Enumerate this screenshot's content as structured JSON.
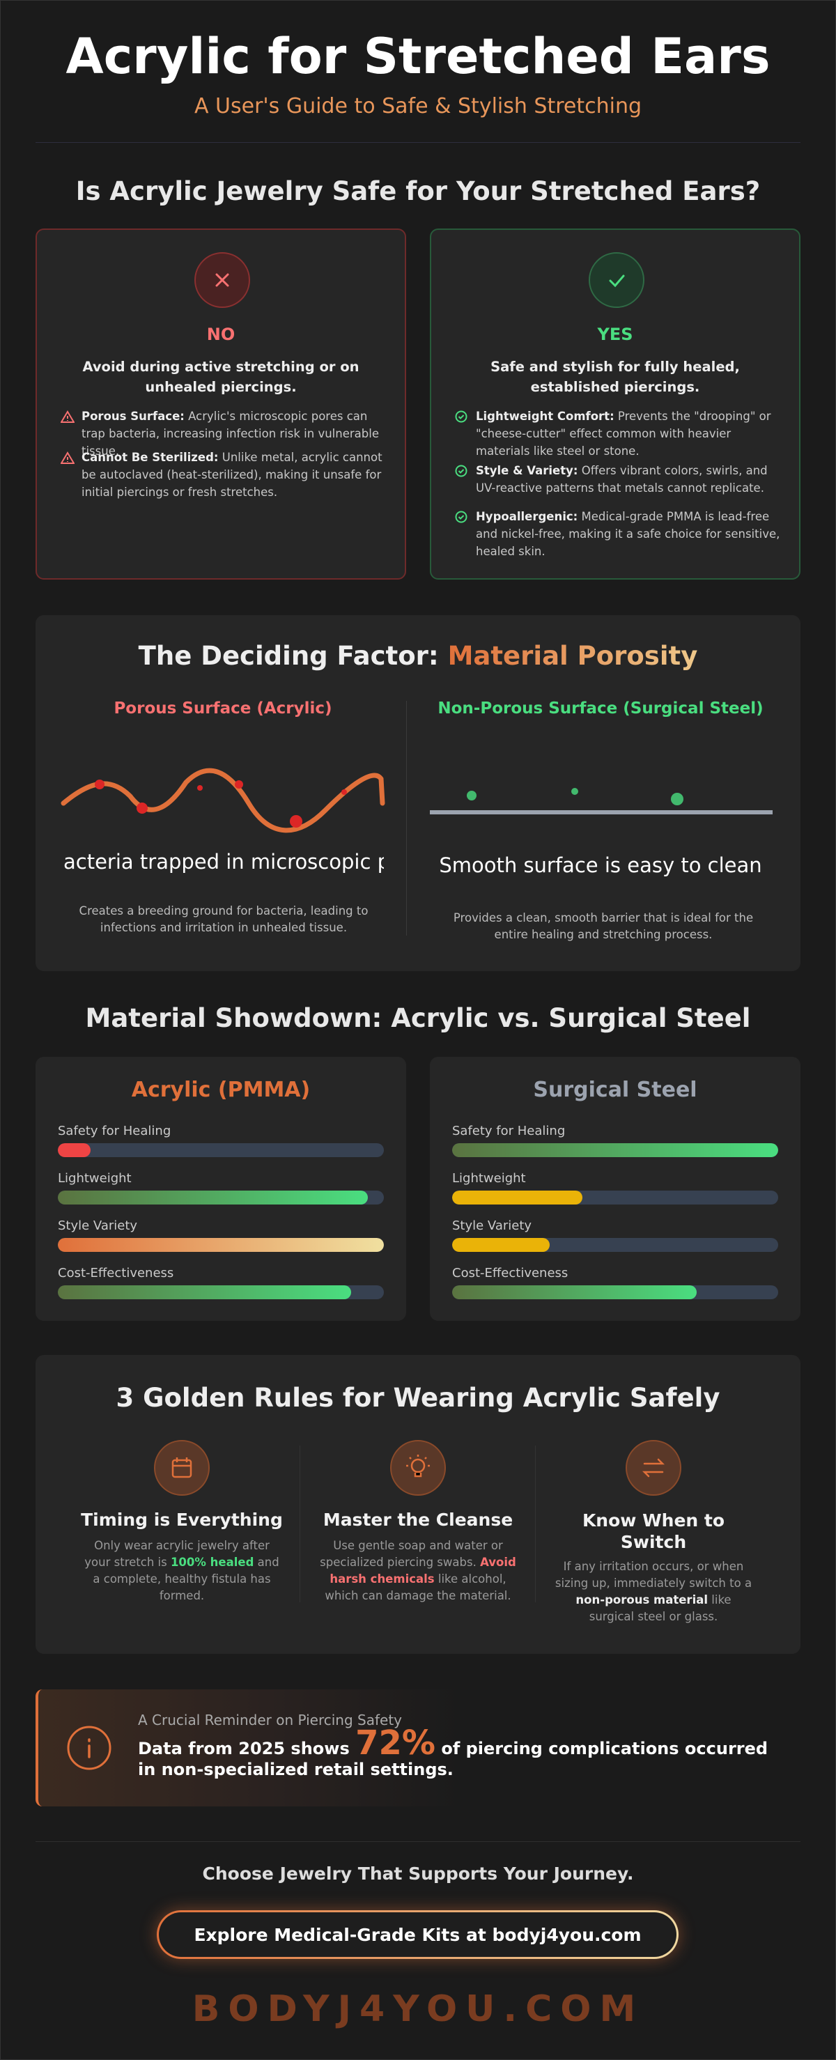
{
  "header": {
    "title": "Acrylic for Stretched Ears",
    "subtitle": "A User's Guide to Safe & Stylish Stretching"
  },
  "safety": {
    "heading": "Is Acrylic Jewelry Safe for Your Stretched Ears?",
    "cards": [
      {
        "verdict": "NO",
        "summary": "Avoid during active stretching or on unhealed piercings.",
        "items": [
          {
            "label": "Porous Surface:",
            "text": "Acrylic's microscopic pores can trap bacteria, increasing infection risk in vulnerable tissue."
          },
          {
            "label": "Cannot Be Sterilized:",
            "text": "Unlike metal, acrylic cannot be autoclaved (heat-sterilized), making it unsafe for initial piercings or fresh stretches."
          }
        ]
      },
      {
        "verdict": "YES",
        "summary": "Safe and stylish for fully healed, established piercings.",
        "items": [
          {
            "label": "Lightweight Comfort:",
            "text": "Prevents the \"drooping\" or \"cheese-cutter\" effect common with heavier materials like steel or stone."
          },
          {
            "label": "Style & Variety:",
            "text": "Offers vibrant colors, swirls, and UV-reactive patterns that metals cannot replicate."
          },
          {
            "label": "Hypoallergenic:",
            "text": "Medical-grade PMMA is lead-free and nickel-free, making it a safe choice for sensitive, healed skin."
          }
        ]
      }
    ]
  },
  "porosity": {
    "heading": "The Deciding Factor:",
    "heading_highlight": "Material Porosity",
    "columns": [
      {
        "title": "Porous Surface (Acrylic)",
        "caption": "acteria trapped in microscopic pit",
        "description": "Creates a breeding ground for bacteria, leading to infections and irritation in unhealed tissue."
      },
      {
        "title": "Non-Porous Surface (Surgical Steel)",
        "caption": "Smooth surface is easy to clean",
        "description": "Provides a clean, smooth barrier that is ideal for the entire healing and stretching process."
      }
    ]
  },
  "showdown": {
    "heading": "Material Showdown: Acrylic vs. Surgical Steel",
    "cards": [
      {
        "title": "Acrylic (PMMA)",
        "ratings": [
          {
            "label": "Safety for Healing",
            "value": 10
          },
          {
            "label": "Lightweight",
            "value": 95
          },
          {
            "label": "Style Variety",
            "value": 100
          },
          {
            "label": "Cost-Effectiveness",
            "value": 90
          }
        ]
      },
      {
        "title": "Surgical Steel",
        "ratings": [
          {
            "label": "Safety for Healing",
            "value": 100
          },
          {
            "label": "Lightweight",
            "value": 40
          },
          {
            "label": "Style Variety",
            "value": 30
          },
          {
            "label": "Cost-Effectiveness",
            "value": 75
          }
        ]
      }
    ]
  },
  "rules": {
    "heading": "3 Golden Rules for Wearing Acrylic Safely",
    "items": [
      {
        "title": "Timing is Everything",
        "body": [
          "Only wear acrylic jewelry after your stretch is ",
          "100% healed",
          " and a complete, healthy fistula has formed."
        ]
      },
      {
        "title": "Master the Cleanse",
        "body": [
          "Use gentle soap and water or specialized piercing swabs. ",
          "Avoid harsh chemicals",
          " like alcohol, which can damage the material."
        ]
      },
      {
        "title": "Know When to Switch",
        "body": [
          "If any irritation occurs, or when sizing up, immediately switch to a ",
          "non-porous material",
          " like surgical steel or glass."
        ]
      }
    ]
  },
  "reminder": {
    "kicker": "A Crucial Reminder on Piercing Safety",
    "text": [
      "Data from 2025 shows ",
      "72%",
      " of piercing complications occurred in non-specialized retail settings."
    ]
  },
  "footer": {
    "tagline": "Choose Jewelry That Supports Your Journey.",
    "button": "Explore Medical-Grade Kits at bodyj4you.com",
    "brand": "BODYJ4YOU.COM"
  }
}
